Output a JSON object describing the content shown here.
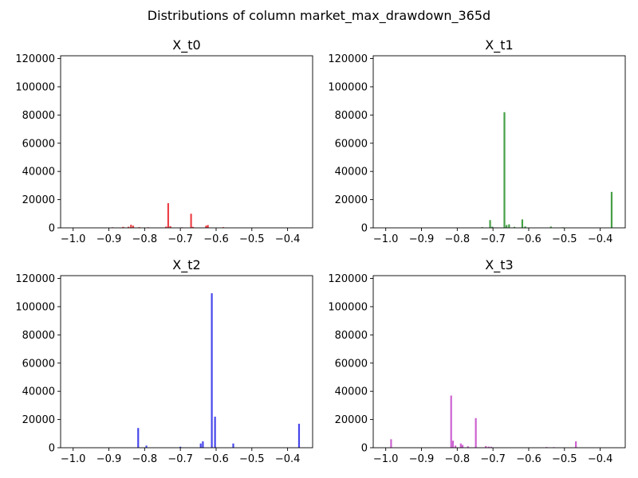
{
  "figure": {
    "suptitle": "Distributions of column market_max_drawdown_365d"
  },
  "chart_data": [
    {
      "type": "bar",
      "title": "X_t0",
      "color": "#e8171e",
      "xlim": [
        -1.035,
        -0.33
      ],
      "ylim": [
        0,
        122000
      ],
      "xticks": [
        -1.0,
        -0.9,
        -0.8,
        -0.7,
        -0.6,
        -0.5,
        -0.4
      ],
      "xtick_labels": [
        "−1.0",
        "−0.9",
        "−0.8",
        "−0.7",
        "−0.6",
        "−0.5",
        "−0.4"
      ],
      "yticks": [
        0,
        20000,
        40000,
        60000,
        80000,
        100000,
        120000
      ],
      "ytick_labels": [
        "0",
        "20000",
        "40000",
        "60000",
        "80000",
        "100000",
        "120000"
      ],
      "bars": [
        {
          "x": -0.89,
          "y": 400
        },
        {
          "x": -0.86,
          "y": 700
        },
        {
          "x": -0.845,
          "y": 800
        },
        {
          "x": -0.838,
          "y": 2200
        },
        {
          "x": -0.832,
          "y": 1500
        },
        {
          "x": -0.815,
          "y": 500
        },
        {
          "x": -0.79,
          "y": 400
        },
        {
          "x": -0.74,
          "y": 900
        },
        {
          "x": -0.734,
          "y": 17500
        },
        {
          "x": -0.728,
          "y": 1200
        },
        {
          "x": -0.695,
          "y": 400
        },
        {
          "x": -0.67,
          "y": 10000
        },
        {
          "x": -0.665,
          "y": 700
        },
        {
          "x": -0.628,
          "y": 1500
        },
        {
          "x": -0.623,
          "y": 2000
        },
        {
          "x": -0.58,
          "y": 500
        }
      ]
    },
    {
      "type": "bar",
      "title": "X_t1",
      "color": "#1f8c1f",
      "xlim": [
        -1.035,
        -0.33
      ],
      "ylim": [
        0,
        122000
      ],
      "xticks": [
        -1.0,
        -0.9,
        -0.8,
        -0.7,
        -0.6,
        -0.5,
        -0.4
      ],
      "xtick_labels": [
        "−1.0",
        "−0.9",
        "−0.8",
        "−0.7",
        "−0.6",
        "−0.5",
        "−0.4"
      ],
      "yticks": [
        0,
        20000,
        40000,
        60000,
        80000,
        100000,
        120000
      ],
      "ytick_labels": [
        "0",
        "20000",
        "40000",
        "60000",
        "80000",
        "100000",
        "120000"
      ],
      "bars": [
        {
          "x": -0.73,
          "y": 500
        },
        {
          "x": -0.708,
          "y": 5500
        },
        {
          "x": -0.702,
          "y": 800
        },
        {
          "x": -0.668,
          "y": 82000
        },
        {
          "x": -0.662,
          "y": 2000
        },
        {
          "x": -0.655,
          "y": 2500
        },
        {
          "x": -0.64,
          "y": 700
        },
        {
          "x": -0.618,
          "y": 6000
        },
        {
          "x": -0.61,
          "y": 1000
        },
        {
          "x": -0.538,
          "y": 900
        },
        {
          "x": -0.505,
          "y": 400
        },
        {
          "x": -0.368,
          "y": 25500
        }
      ]
    },
    {
      "type": "bar",
      "title": "X_t2",
      "color": "#1f1fe8",
      "xlim": [
        -1.035,
        -0.33
      ],
      "ylim": [
        0,
        122000
      ],
      "xticks": [
        -1.0,
        -0.9,
        -0.8,
        -0.7,
        -0.6,
        -0.5,
        -0.4
      ],
      "xtick_labels": [
        "−1.0",
        "−0.9",
        "−0.8",
        "−0.7",
        "−0.6",
        "−0.5",
        "−0.4"
      ],
      "yticks": [
        0,
        20000,
        40000,
        60000,
        80000,
        100000,
        120000
      ],
      "ytick_labels": [
        "0",
        "20000",
        "40000",
        "60000",
        "80000",
        "100000",
        "120000"
      ],
      "bars": [
        {
          "x": -0.818,
          "y": 14000
        },
        {
          "x": -0.795,
          "y": 1500
        },
        {
          "x": -0.7,
          "y": 700
        },
        {
          "x": -0.643,
          "y": 3000
        },
        {
          "x": -0.637,
          "y": 4500
        },
        {
          "x": -0.612,
          "y": 109500
        },
        {
          "x": -0.603,
          "y": 22000
        },
        {
          "x": -0.552,
          "y": 3000
        },
        {
          "x": -0.368,
          "y": 17000
        }
      ]
    },
    {
      "type": "bar",
      "title": "X_t3",
      "color": "#c23fc7",
      "xlim": [
        -1.035,
        -0.33
      ],
      "ylim": [
        0,
        122000
      ],
      "xticks": [
        -1.0,
        -0.9,
        -0.8,
        -0.7,
        -0.6,
        -0.5,
        -0.4
      ],
      "xtick_labels": [
        "−1.0",
        "−0.9",
        "−0.8",
        "−0.7",
        "−0.6",
        "−0.5",
        "−0.4"
      ],
      "yticks": [
        0,
        20000,
        40000,
        60000,
        80000,
        100000,
        120000
      ],
      "ytick_labels": [
        "0",
        "20000",
        "40000",
        "60000",
        "80000",
        "100000",
        "120000"
      ],
      "bars": [
        {
          "x": -0.985,
          "y": 6000
        },
        {
          "x": -0.817,
          "y": 37000
        },
        {
          "x": -0.812,
          "y": 5000
        },
        {
          "x": -0.805,
          "y": 1500
        },
        {
          "x": -0.79,
          "y": 3000
        },
        {
          "x": -0.785,
          "y": 2000
        },
        {
          "x": -0.77,
          "y": 1000
        },
        {
          "x": -0.748,
          "y": 21000
        },
        {
          "x": -0.72,
          "y": 1200
        },
        {
          "x": -0.712,
          "y": 800
        },
        {
          "x": -0.705,
          "y": 700
        },
        {
          "x": -0.55,
          "y": 500
        },
        {
          "x": -0.53,
          "y": 400
        },
        {
          "x": -0.468,
          "y": 4500
        }
      ]
    }
  ]
}
